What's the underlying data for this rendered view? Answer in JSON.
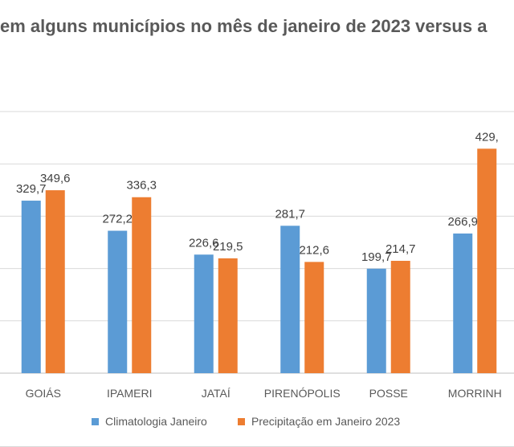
{
  "chart_data": {
    "type": "bar",
    "title": "em alguns municípios no mês de janeiro de 2023 versus a",
    "categories": [
      "GOIÁS",
      "IPAMERI",
      "JATAÍ",
      "PIRENÓPOLIS",
      "POSSE",
      "MORRINH"
    ],
    "series": [
      {
        "name": "Climatologia Janeiro",
        "color": "#5b9bd5",
        "values": [
          329.7,
          272.2,
          226.6,
          281.7,
          199.7,
          266.9
        ],
        "labels": [
          "329,7",
          "272,2",
          "226,6",
          "281,7",
          "199,7",
          "266,9"
        ]
      },
      {
        "name": "Precipitação em Janeiro 2023",
        "color": "#ed7d31",
        "values": [
          349.6,
          336.3,
          219.5,
          212.6,
          214.7,
          429.0
        ],
        "labels": [
          "349,6",
          "336,3",
          "219,5",
          "212,6",
          "214,7",
          "429,"
        ]
      }
    ],
    "ylim": [
      0,
      500
    ],
    "gridlines": [
      0,
      100,
      200,
      300,
      400,
      500
    ],
    "grid": true,
    "legend_position": "bottom"
  }
}
